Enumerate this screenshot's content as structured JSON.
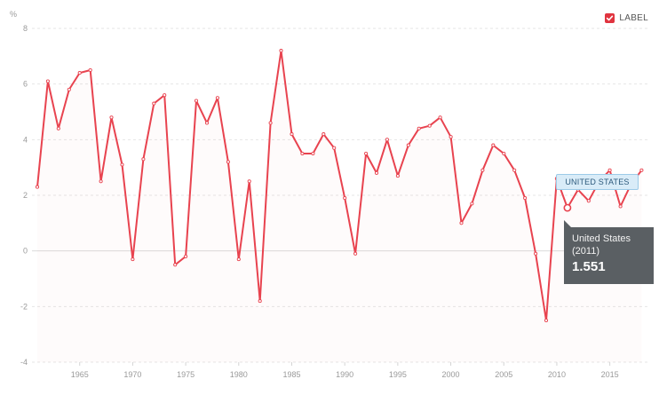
{
  "chart_data": {
    "type": "line",
    "unit_label": "%",
    "ylim": [
      -4,
      8
    ],
    "y_ticks": [
      -4,
      -2,
      0,
      2,
      4,
      6,
      8
    ],
    "xlim": [
      1960.5,
      2018.8
    ],
    "x_ticks": [
      1965,
      1970,
      1975,
      1980,
      1985,
      1990,
      1995,
      2000,
      2005,
      2010,
      2015
    ],
    "grid": true,
    "legend_position": "top-right",
    "legend": {
      "label": "LABEL",
      "checked": true,
      "color": "#e0343f"
    },
    "series": [
      {
        "name": "United States",
        "color": "#e8434f",
        "x": [
          1961,
          1962,
          1963,
          1964,
          1965,
          1966,
          1967,
          1968,
          1969,
          1970,
          1971,
          1972,
          1973,
          1974,
          1975,
          1976,
          1977,
          1978,
          1979,
          1980,
          1981,
          1982,
          1983,
          1984,
          1985,
          1986,
          1987,
          1988,
          1989,
          1990,
          1991,
          1992,
          1993,
          1994,
          1995,
          1996,
          1997,
          1998,
          1999,
          2000,
          2001,
          2002,
          2003,
          2004,
          2005,
          2006,
          2007,
          2008,
          2009,
          2010,
          2011,
          2012,
          2013,
          2014,
          2015,
          2016,
          2017,
          2018
        ],
        "values": [
          2.3,
          6.1,
          4.4,
          5.8,
          6.4,
          6.5,
          2.5,
          4.8,
          3.1,
          -0.3,
          3.3,
          5.3,
          5.6,
          -0.5,
          -0.2,
          5.4,
          4.6,
          5.5,
          3.2,
          -0.3,
          2.5,
          -1.8,
          4.6,
          7.2,
          4.2,
          3.5,
          3.5,
          4.2,
          3.7,
          1.9,
          -0.1,
          3.5,
          2.8,
          4.0,
          2.7,
          3.8,
          4.4,
          4.5,
          4.8,
          4.1,
          1.0,
          1.7,
          2.9,
          3.8,
          3.5,
          2.9,
          1.9,
          -0.1,
          -2.5,
          2.6,
          1.551,
          2.2,
          1.8,
          2.5,
          2.9,
          1.6,
          2.4,
          2.9
        ]
      }
    ],
    "series_tag": "UNITED STATES",
    "tooltip": {
      "series_name": "United States",
      "year_label": "(2011)",
      "value_label": "1.551",
      "x": 2011,
      "y": 1.551
    }
  }
}
